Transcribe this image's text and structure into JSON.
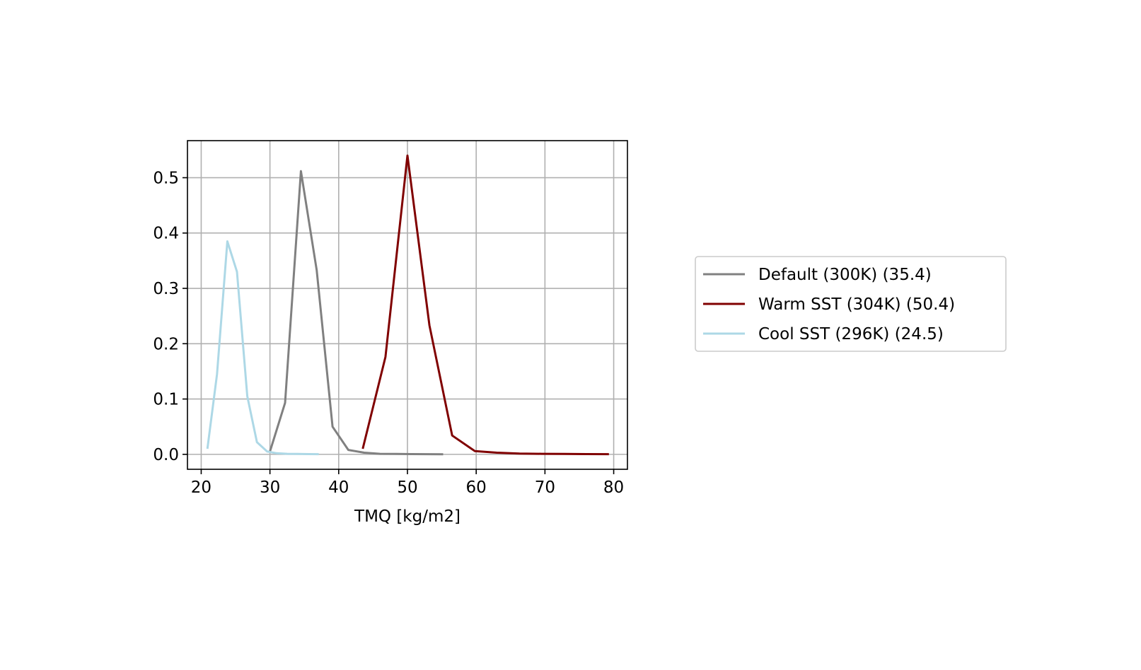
{
  "chart_data": {
    "type": "line",
    "xlabel": "TMQ [kg/m2]",
    "ylabel": "",
    "xlim": [
      18,
      82
    ],
    "ylim": [
      -0.027,
      0.567
    ],
    "xticks": [
      20,
      30,
      40,
      50,
      60,
      70,
      80
    ],
    "xtick_labels": [
      "20",
      "30",
      "40",
      "50",
      "60",
      "70",
      "80"
    ],
    "yticks": [
      0.0,
      0.1,
      0.2,
      0.3,
      0.4,
      0.5
    ],
    "ytick_labels": [
      "0.0",
      "0.1",
      "0.2",
      "0.3",
      "0.4",
      "0.5"
    ],
    "grid": true,
    "legend_position": "outside-right",
    "series": [
      {
        "name": "Default (300K) (35.4)",
        "color": "#808080",
        "x": [
          30.0,
          32.2,
          34.5,
          36.8,
          39.1,
          41.4,
          43.7,
          46.0,
          48.3,
          50.6,
          52.9,
          55.2
        ],
        "y": [
          0.005,
          0.093,
          0.512,
          0.333,
          0.05,
          0.008,
          0.003,
          0.001,
          0.0008,
          0.0005,
          0.0003,
          0.0002
        ]
      },
      {
        "name": "Warm SST (304K) (50.4)",
        "color": "#800000",
        "x": [
          43.5,
          46.8,
          50.0,
          53.2,
          56.5,
          59.8,
          63.0,
          66.3,
          69.5,
          72.8,
          76.0,
          79.3
        ],
        "y": [
          0.01,
          0.176,
          0.54,
          0.233,
          0.034,
          0.006,
          0.003,
          0.0015,
          0.001,
          0.0007,
          0.0005,
          0.0003
        ]
      },
      {
        "name": "Cool SST (296K) (24.5)",
        "color": "#add8e6",
        "x": [
          20.9,
          22.3,
          23.8,
          25.2,
          26.7,
          28.1,
          29.6,
          31.0,
          32.5,
          34.0,
          35.6,
          37.1
        ],
        "y": [
          0.01,
          0.145,
          0.385,
          0.33,
          0.105,
          0.022,
          0.005,
          0.002,
          0.001,
          0.0008,
          0.0005,
          0.0003
        ]
      }
    ]
  }
}
